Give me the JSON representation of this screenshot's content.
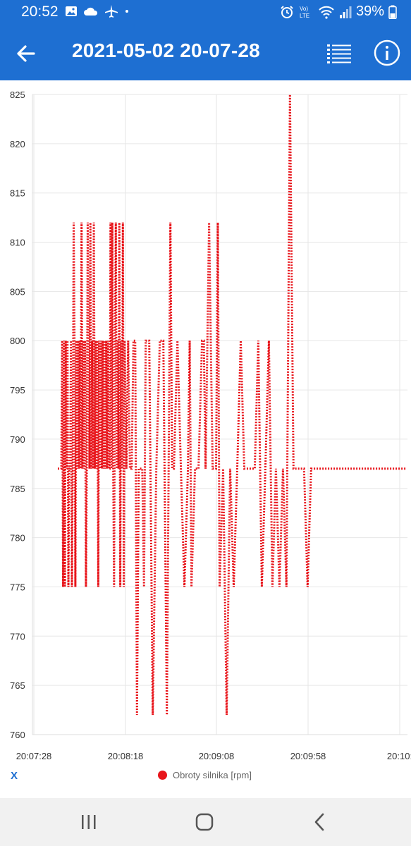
{
  "status_bar": {
    "time": "20:52",
    "battery": "39%",
    "icons_left": [
      "image-icon",
      "cloud-icon",
      "airplane-icon",
      "dot-icon"
    ],
    "icons_right": [
      "alarm-icon",
      "volte-icon",
      "wifi-icon",
      "signal-icon",
      "battery-icon"
    ]
  },
  "app_bar": {
    "title": "2021-05-02 20-07-28",
    "background": "#1E6FD2"
  },
  "chart_data": {
    "type": "line",
    "title": "",
    "ylim": [
      760,
      825
    ],
    "y_ticks": [
      "825",
      "820",
      "815",
      "810",
      "805",
      "800",
      "795",
      "790",
      "785",
      "780",
      "775",
      "770",
      "765",
      "760"
    ],
    "x_ticks": [
      "20:07:28",
      "20:08:18",
      "20:09:08",
      "20:09:58",
      "20:10:"
    ],
    "grid": true,
    "line_style": "dotted",
    "line_color": "#E8151B",
    "series": [
      {
        "name": "Obroty silnika [rpm]",
        "x_seconds_from_start": [
          0,
          2,
          2.5,
          3,
          3.5,
          4,
          4.5,
          5,
          5.5,
          6,
          6.5,
          7,
          7.5,
          8,
          8.5,
          9,
          9.5,
          10,
          10.5,
          11,
          11.5,
          12,
          12.5,
          13,
          13.5,
          14,
          14.5,
          15,
          15.5,
          16,
          16.5,
          17,
          17.5,
          18,
          18.5,
          19,
          19.5,
          20,
          20.5,
          21,
          21.5,
          22,
          22.5,
          23,
          23.5,
          24,
          24.5,
          25,
          25.5,
          26,
          26.5,
          27,
          27.5,
          28,
          28.5,
          29,
          29.5,
          30,
          30.5,
          31,
          31.5,
          32,
          32.5,
          33,
          33.5,
          34,
          34.5,
          35,
          35.5,
          36,
          36.5,
          37,
          37.5,
          38,
          39,
          40,
          41,
          42,
          43,
          44,
          45,
          46,
          48,
          49,
          50,
          52,
          54,
          56,
          58,
          60,
          62,
          63,
          64,
          65,
          66,
          68,
          70,
          72,
          74,
          75,
          76,
          78,
          80,
          82,
          83,
          84,
          86,
          88,
          90,
          91,
          92,
          94,
          96,
          98,
          100,
          102,
          104,
          106,
          108,
          110,
          112,
          114,
          116,
          118,
          120,
          122,
          124,
          126,
          128,
          130,
          132,
          134,
          136,
          138,
          140,
          142,
          144,
          146,
          148,
          150,
          152,
          154,
          156,
          158,
          160,
          162,
          164,
          166,
          168,
          170,
          172,
          174,
          176,
          178,
          180,
          182,
          184,
          186,
          188,
          190,
          192,
          194,
          196,
          198
        ],
        "values": [
          787,
          787,
          800,
          775,
          800,
          775,
          800,
          787,
          800,
          775,
          787,
          787,
          800,
          775,
          787,
          812,
          800,
          775,
          800,
          787,
          800,
          787,
          800,
          787,
          812,
          787,
          800,
          787,
          800,
          775,
          787,
          812,
          800,
          787,
          812,
          787,
          800,
          787,
          812,
          787,
          800,
          787,
          800,
          775,
          800,
          787,
          800,
          787,
          800,
          787,
          800,
          787,
          800,
          787,
          800,
          787,
          787,
          812,
          787,
          812,
          787,
          775,
          800,
          812,
          787,
          800,
          787,
          812,
          775,
          800,
          787,
          812,
          775,
          800,
          787,
          800,
          787,
          787,
          800,
          800,
          762,
          787,
          787,
          775,
          800,
          800,
          762,
          787,
          800,
          800,
          762,
          787,
          812,
          787,
          787,
          800,
          787,
          775,
          787,
          800,
          775,
          787,
          787,
          800,
          800,
          787,
          812,
          787,
          787,
          812,
          775,
          787,
          762,
          787,
          775,
          787,
          800,
          787,
          787,
          787,
          787,
          800,
          775,
          787,
          800,
          775,
          787,
          775,
          787,
          775,
          825,
          787,
          787,
          787,
          787,
          775,
          787,
          787,
          787,
          787,
          787,
          787,
          787,
          787,
          787,
          787,
          787,
          787,
          787,
          787,
          787,
          787,
          787,
          787,
          787,
          787,
          787,
          787,
          787,
          787,
          787,
          787,
          787,
          787,
          787,
          787
        ]
      }
    ],
    "legend": "bottom-center"
  },
  "x_axis_indicator": "X",
  "legend_label": "Obroty silnika [rpm]",
  "nav_bar": {
    "items": [
      "recent-apps-icon",
      "home-icon",
      "back-nav-icon"
    ]
  }
}
